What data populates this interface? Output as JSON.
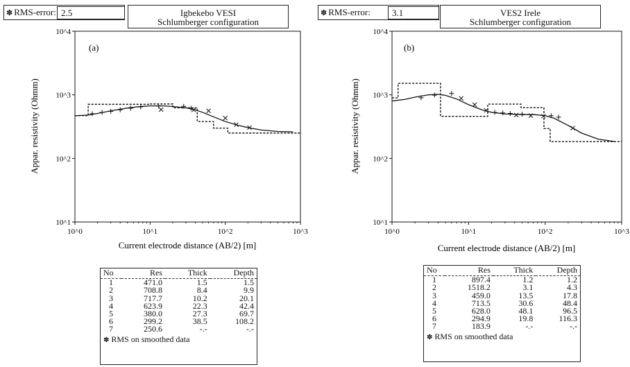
{
  "panels": [
    {
      "rms_label": "RMS-error:",
      "rms_value": "2.5",
      "title_line1": "Igbekebo VESI",
      "title_line2": "Schlumberger configuration",
      "footnote": "RMS on smoothed data",
      "table_headers": [
        "No",
        "Res",
        "Thick",
        "Depth"
      ],
      "table_rows": [
        [
          "1",
          "471.0",
          "1.5",
          "1.5"
        ],
        [
          "2",
          "708.8",
          "8.4",
          "9.9"
        ],
        [
          "3",
          "717.7",
          "10.2",
          "20.1"
        ],
        [
          "4",
          "623.9",
          "22.3",
          "42.4"
        ],
        [
          "5",
          "380.0",
          "27.3",
          "69.7"
        ],
        [
          "6",
          "299.2",
          "38.5",
          "108.2"
        ],
        [
          "7",
          "250.6",
          "-.-",
          "-.-"
        ]
      ]
    },
    {
      "rms_label": "RMS-error:",
      "rms_value": "3.1",
      "title_line1": "VES2 Irele",
      "title_line2": "Schlumberger configuration",
      "footnote": "RMS on smoothed data",
      "table_headers": [
        "No",
        "Res",
        "Thick",
        "Depth"
      ],
      "table_rows": [
        [
          "1",
          "897.4",
          "1.2",
          "1.2"
        ],
        [
          "2",
          "1518.2",
          "3.1",
          "4.3"
        ],
        [
          "3",
          "459.0",
          "13.5",
          "17.8"
        ],
        [
          "4",
          "713.5",
          "30.6",
          "48.4"
        ],
        [
          "5",
          "628.0",
          "48.1",
          "96.5"
        ],
        [
          "6",
          "294.9",
          "19.8",
          "116.3"
        ],
        [
          "7",
          "183.9",
          "-.-",
          "-.-"
        ]
      ]
    }
  ],
  "chart_data": [
    {
      "type": "line",
      "panel_label": "(a)",
      "xlabel": "Current electrode distance (AB/2) [m]",
      "ylabel": "Appar. resistivity (Ohmm)",
      "x_scale": "log",
      "y_scale": "log",
      "xlim": [
        1,
        1000
      ],
      "ylim": [
        10,
        10000
      ],
      "x_ticks": [
        "10^0",
        "10^1",
        "10^2",
        "10^3"
      ],
      "y_ticks": [
        "10^1",
        "10^2",
        "10^3",
        "10^4"
      ],
      "model_layers": {
        "res": [
          471.0,
          708.8,
          717.7,
          623.9,
          380.0,
          299.2,
          250.6
        ],
        "depth": [
          1.5,
          9.9,
          20.1,
          42.4,
          69.7,
          108.2
        ]
      },
      "series": [
        {
          "style": "calculated-curve",
          "x": [
            1,
            1.5,
            2,
            3,
            5,
            7,
            10,
            15,
            20,
            30,
            40,
            50,
            70,
            100,
            150,
            200,
            300,
            500,
            800
          ],
          "y": [
            470,
            480,
            510,
            560,
            620,
            650,
            670,
            670,
            655,
            625,
            580,
            530,
            450,
            380,
            330,
            305,
            280,
            265,
            262
          ]
        },
        {
          "style": "observed-plus",
          "x": [
            1.7,
            2.3,
            3,
            4,
            5.5,
            7.5,
            13,
            28,
            35
          ],
          "y": [
            505,
            530,
            550,
            580,
            615,
            645,
            665,
            660,
            615
          ]
        },
        {
          "style": "observed-cross",
          "x": [
            14,
            38,
            60,
            100,
            140,
            210
          ],
          "y": [
            585,
            580,
            560,
            430,
            340,
            305
          ]
        }
      ]
    },
    {
      "type": "line",
      "panel_label": "(b)",
      "xlabel": "Current electrode distance (AB/2) [m]",
      "ylabel": "Appar. resistivity (Ohmm)",
      "x_scale": "log",
      "y_scale": "log",
      "xlim": [
        1,
        1000
      ],
      "ylim": [
        10,
        10000
      ],
      "x_ticks": [
        "10^0",
        "10^1",
        "10^2",
        "10^3"
      ],
      "y_ticks": [
        "10^1",
        "10^2",
        "10^3",
        "10^4"
      ],
      "model_layers": {
        "res": [
          897.4,
          1518.2,
          459.0,
          713.5,
          628.0,
          294.9,
          183.9
        ],
        "depth": [
          1.2,
          4.3,
          17.8,
          48.4,
          96.5,
          116.3
        ]
      },
      "series": [
        {
          "style": "calculated-curve",
          "x": [
            1,
            1.5,
            2,
            3,
            4,
            5,
            7,
            10,
            15,
            20,
            30,
            50,
            70,
            100,
            130,
            200,
            300,
            500,
            800
          ],
          "y": [
            800,
            850,
            920,
            1000,
            1020,
            980,
            860,
            700,
            580,
            530,
            500,
            490,
            490,
            470,
            430,
            330,
            250,
            200,
            185
          ]
        },
        {
          "style": "observed-plus",
          "x": [
            2.4,
            3.6,
            6,
            22,
            28,
            35,
            50,
            120,
            150
          ],
          "y": [
            900,
            990,
            1050,
            530,
            520,
            510,
            495,
            470,
            445
          ]
        },
        {
          "style": "observed-cross",
          "x": [
            8,
            12,
            17,
            42,
            65,
            95,
            230
          ],
          "y": [
            880,
            700,
            570,
            480,
            470,
            460,
            300
          ]
        }
      ]
    }
  ]
}
